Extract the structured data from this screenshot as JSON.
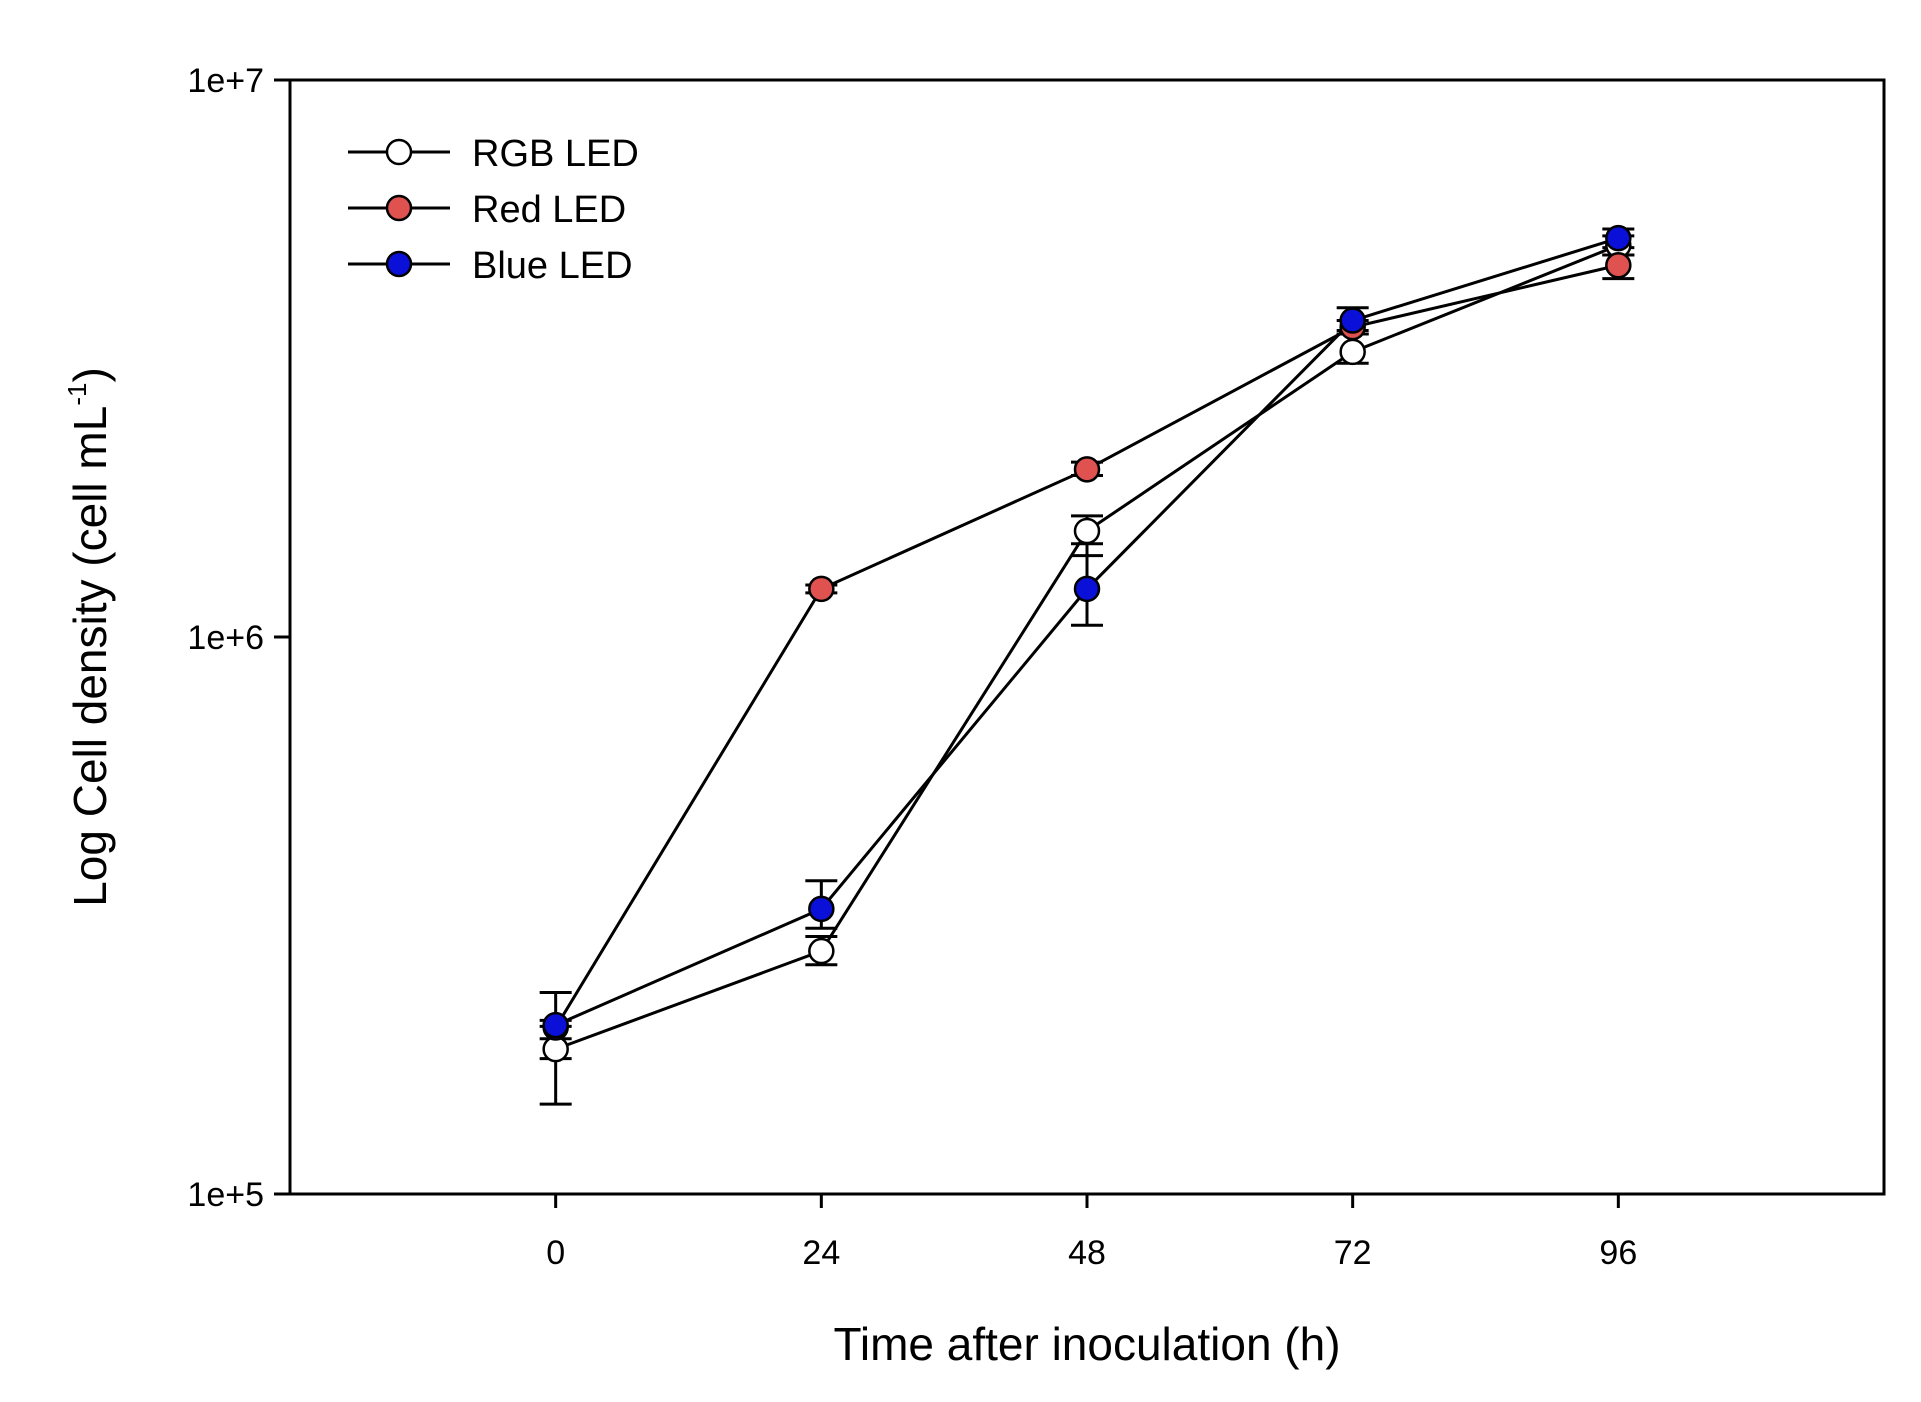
{
  "chart_data": {
    "type": "line",
    "title": "",
    "xlabel": "Time after inoculation (h)",
    "ylabel": {
      "prefix": "Log Cell density (cell mL",
      "superscript": "-1",
      "suffix": ")"
    },
    "yscale": "log",
    "xlim": [
      -24,
      120
    ],
    "ylim": [
      100000,
      10000000
    ],
    "xticks": [
      0,
      24,
      48,
      72,
      96
    ],
    "yticks": [
      {
        "value": 100000,
        "label": "1e+5"
      },
      {
        "value": 1000000,
        "label": "1e+6"
      },
      {
        "value": 10000000,
        "label": "1e+7"
      }
    ],
    "legend_position": "top-left",
    "grid": false,
    "x": [
      0,
      24,
      48,
      72,
      96
    ],
    "series": [
      {
        "name": "RGB LED",
        "color": "#ffffff",
        "values": [
          182000,
          273000,
          1550000,
          3250000,
          5050000
        ],
        "errors": [
          [
            145000,
            200000
          ],
          [
            258000,
            290000
          ],
          [
            1400000,
            1650000
          ],
          [
            3100000,
            3500000
          ],
          [
            4850000,
            5250000
          ]
        ]
      },
      {
        "name": "Red LED",
        "color": "#e0524f",
        "values": [
          199000,
          1220000,
          2000000,
          3600000,
          4650000
        ],
        "errors": [
          [
            190000,
            205000
          ],
          [
            1200000,
            1240000
          ],
          [
            1950000,
            2060000
          ],
          [
            3500000,
            3700000
          ],
          [
            4400000,
            4850000
          ]
        ]
      },
      {
        "name": "Blue LED",
        "color": "#0a10d8",
        "values": [
          201000,
          325000,
          1220000,
          3700000,
          5200000
        ],
        "errors": [
          [
            175000,
            230000
          ],
          [
            300000,
            365000
          ],
          [
            1050000,
            1470000
          ],
          [
            3550000,
            3900000
          ],
          [
            5000000,
            5400000
          ]
        ]
      }
    ]
  }
}
